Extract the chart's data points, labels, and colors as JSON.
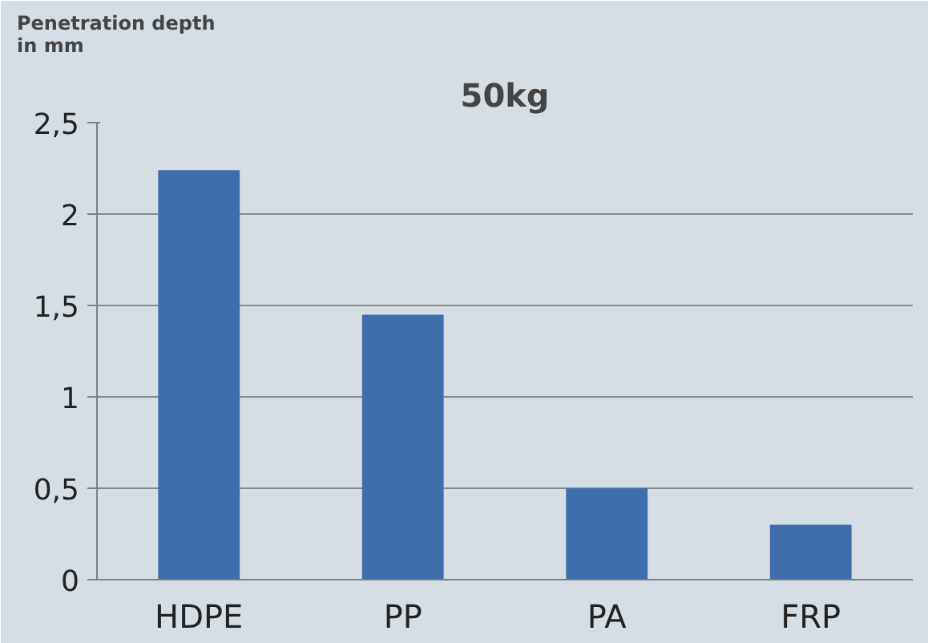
{
  "chart_data": {
    "type": "bar",
    "title": "50kg",
    "ylabel": "Penetration depth\nin mm",
    "categories": [
      "HDPE",
      "PP",
      "PA",
      "FRP"
    ],
    "values": [
      2.24,
      1.45,
      0.5,
      0.3
    ],
    "color": "#3e6eab",
    "ylim": [
      0,
      2.5
    ],
    "yticks": [
      0,
      {
        "value": 0.5,
        "label": "0,5"
      },
      1,
      {
        "value": 1.5,
        "label": "1,5"
      },
      2,
      {
        "value": 2.5,
        "label": "2,5"
      }
    ],
    "grid": "y"
  }
}
